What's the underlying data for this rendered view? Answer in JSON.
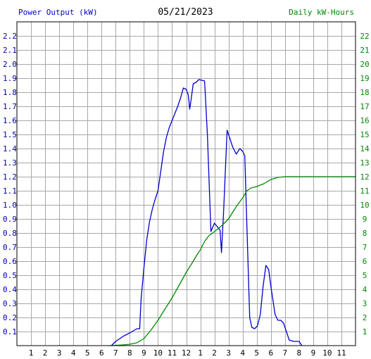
{
  "header": {
    "left_title": "Power Output (kW)",
    "center_title": "05/21/2023",
    "right_title": "Daily kW-Hours"
  },
  "colors": {
    "power_series": "#0000cc",
    "energy_series": "#008800",
    "grid": "#a8a8a8",
    "frame": "#000000"
  },
  "chart_data": {
    "type": "line",
    "title": "05/21/2023",
    "grid": true,
    "x_tick_labels": [
      "1",
      "2",
      "3",
      "4",
      "5",
      "6",
      "7",
      "8",
      "9",
      "10",
      "11",
      "12",
      "1",
      "2",
      "3",
      "4",
      "5",
      "6",
      "7",
      "8",
      "9",
      "10",
      "11"
    ],
    "xlim_hours": [
      0,
      24
    ],
    "left_axis": {
      "label": "Power Output (kW)",
      "ylim": [
        0,
        2.3
      ],
      "tick_labels": [
        "0.1",
        "0.2",
        "0.3",
        "0.4",
        "0.5",
        "0.6",
        "0.7",
        "0.8",
        "0.9",
        "1.0",
        "1.1",
        "1.2",
        "1.3",
        "1.4",
        "1.5",
        "1.6",
        "1.7",
        "1.8",
        "1.9",
        "2.0",
        "2.1",
        "2.2"
      ]
    },
    "right_axis": {
      "label": "Daily kW-Hours",
      "ylim": [
        0,
        23
      ],
      "tick_labels": [
        "1",
        "2",
        "3",
        "4",
        "5",
        "6",
        "7",
        "8",
        "9",
        "10",
        "11",
        "12",
        "13",
        "14",
        "15",
        "16",
        "17",
        "18",
        "19",
        "20",
        "21",
        "22"
      ]
    },
    "series": [
      {
        "name": "Power Output (kW)",
        "axis": "left",
        "points": [
          [
            6.7,
            0.0
          ],
          [
            7.0,
            0.03
          ],
          [
            7.3,
            0.05
          ],
          [
            7.6,
            0.07
          ],
          [
            8.0,
            0.09
          ],
          [
            8.5,
            0.12
          ],
          [
            8.7,
            0.12
          ],
          [
            8.8,
            0.33
          ],
          [
            9.0,
            0.55
          ],
          [
            9.2,
            0.75
          ],
          [
            9.4,
            0.88
          ],
          [
            9.6,
            0.97
          ],
          [
            9.8,
            1.04
          ],
          [
            10.0,
            1.1
          ],
          [
            10.2,
            1.24
          ],
          [
            10.4,
            1.38
          ],
          [
            10.6,
            1.48
          ],
          [
            10.8,
            1.55
          ],
          [
            11.0,
            1.6
          ],
          [
            11.2,
            1.65
          ],
          [
            11.4,
            1.7
          ],
          [
            11.6,
            1.76
          ],
          [
            11.8,
            1.83
          ],
          [
            12.0,
            1.82
          ],
          [
            12.15,
            1.78
          ],
          [
            12.25,
            1.68
          ],
          [
            12.35,
            1.75
          ],
          [
            12.5,
            1.86
          ],
          [
            12.7,
            1.87
          ],
          [
            12.9,
            1.89
          ],
          [
            13.3,
            1.88
          ],
          [
            13.5,
            1.5
          ],
          [
            13.75,
            0.81
          ],
          [
            14.0,
            0.87
          ],
          [
            14.4,
            0.82
          ],
          [
            14.5,
            0.66
          ],
          [
            14.65,
            0.95
          ],
          [
            14.9,
            1.53
          ],
          [
            15.1,
            1.47
          ],
          [
            15.3,
            1.41
          ],
          [
            15.55,
            1.36
          ],
          [
            15.8,
            1.4
          ],
          [
            16.0,
            1.38
          ],
          [
            16.15,
            1.35
          ],
          [
            16.3,
            0.85
          ],
          [
            16.5,
            0.2
          ],
          [
            16.65,
            0.13
          ],
          [
            16.85,
            0.12
          ],
          [
            17.05,
            0.14
          ],
          [
            17.25,
            0.22
          ],
          [
            17.45,
            0.42
          ],
          [
            17.65,
            0.57
          ],
          [
            17.85,
            0.54
          ],
          [
            18.0,
            0.42
          ],
          [
            18.15,
            0.32
          ],
          [
            18.3,
            0.22
          ],
          [
            18.5,
            0.18
          ],
          [
            18.7,
            0.18
          ],
          [
            18.9,
            0.16
          ],
          [
            19.1,
            0.1
          ],
          [
            19.3,
            0.04
          ],
          [
            19.6,
            0.03
          ],
          [
            20.0,
            0.03
          ],
          [
            20.2,
            0.0
          ]
        ]
      },
      {
        "name": "Daily kW-Hours",
        "axis": "right",
        "points": [
          [
            6.5,
            0.0
          ],
          [
            7.0,
            0.02
          ],
          [
            7.5,
            0.05
          ],
          [
            8.0,
            0.1
          ],
          [
            8.5,
            0.2
          ],
          [
            9.0,
            0.5
          ],
          [
            9.5,
            1.1
          ],
          [
            10.0,
            1.8
          ],
          [
            10.5,
            2.6
          ],
          [
            11.0,
            3.4
          ],
          [
            11.5,
            4.3
          ],
          [
            12.0,
            5.2
          ],
          [
            12.5,
            6.0
          ],
          [
            12.8,
            6.5
          ],
          [
            13.0,
            6.8
          ],
          [
            13.3,
            7.4
          ],
          [
            13.6,
            7.8
          ],
          [
            14.0,
            8.1
          ],
          [
            14.5,
            8.5
          ],
          [
            15.0,
            9.0
          ],
          [
            15.5,
            9.8
          ],
          [
            16.0,
            10.5
          ],
          [
            16.3,
            11.0
          ],
          [
            16.6,
            11.2
          ],
          [
            17.0,
            11.3
          ],
          [
            17.5,
            11.5
          ],
          [
            18.0,
            11.8
          ],
          [
            18.5,
            11.95
          ],
          [
            19.0,
            12.0
          ],
          [
            24.0,
            12.0
          ]
        ]
      }
    ]
  }
}
